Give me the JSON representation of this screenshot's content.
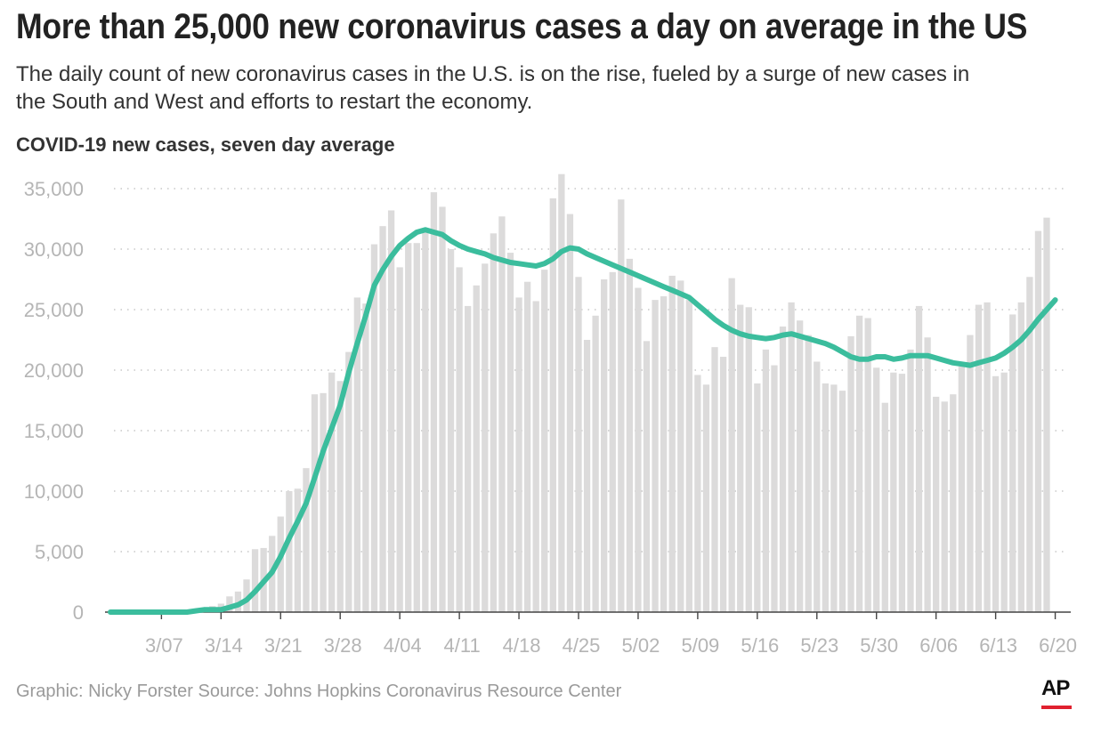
{
  "header": {
    "title": "More than 25,000 new coronavirus cases a day on average in the US",
    "subtitle": "The daily count of new coronavirus cases in the U.S. is on the rise, fueled by a surge of new cases in the South and West and efforts to restart the economy."
  },
  "footer": {
    "credit": "Graphic: Nicky Forster  Source: Johns Hopkins Coronavirus Resource Center",
    "logo_text": "AP"
  },
  "colors": {
    "bar": "#dcdbdb",
    "line": "#3bbd9d",
    "axis_text": "#b5b5b5",
    "grid": "#bdbdbd",
    "logo_red": "#e0212f"
  },
  "chart_data": {
    "type": "bar",
    "title": "COVID-19 new cases, seven day average",
    "x_start": "3/01",
    "x_end": "6/20",
    "xticks": [
      "3/07",
      "3/14",
      "3/21",
      "3/28",
      "4/04",
      "4/11",
      "4/18",
      "4/25",
      "5/02",
      "5/09",
      "5/16",
      "5/23",
      "5/30",
      "6/06",
      "6/13",
      "6/20"
    ],
    "yticks": [
      0,
      5000,
      10000,
      15000,
      20000,
      25000,
      30000,
      35000
    ],
    "ytick_labels": [
      "0",
      "5,000",
      "10,000",
      "15,000",
      "20,000",
      "25,000",
      "30,000",
      "35,000"
    ],
    "ylim": [
      0,
      36500
    ],
    "grid": "horizontal dotted",
    "series": [
      {
        "type": "bar",
        "values": [
          0,
          0,
          0,
          0,
          0,
          0,
          0,
          0,
          100,
          100,
          200,
          300,
          500,
          700,
          1300,
          1700,
          2700,
          5200,
          5300,
          6300,
          7900,
          10000,
          10200,
          11900,
          18000,
          18100,
          19800,
          19100,
          21500,
          26000,
          25500,
          30400,
          31900,
          33200,
          28500,
          30500,
          30500,
          31700,
          34700,
          33500,
          30000,
          28500,
          25300,
          27000,
          28800,
          31300,
          32700,
          29700,
          26000,
          27300,
          25700,
          28300,
          34200,
          36200,
          32900,
          27700,
          22500,
          24500,
          27500,
          28100,
          34100,
          29200,
          26800,
          22400,
          25800,
          26100,
          27800,
          27400,
          25800,
          19600,
          18800,
          21900,
          21100,
          27600,
          25400,
          25200,
          18900,
          21700,
          20400,
          23600,
          25600,
          24100,
          22900,
          20700,
          18900,
          18800,
          18300,
          22800,
          24500,
          24300,
          20200,
          17300,
          19800,
          19700,
          21700,
          25300,
          22700,
          17800,
          17400,
          18000,
          20300,
          22900,
          25400,
          25600,
          19500,
          19800,
          24600,
          25600,
          27700,
          31500,
          32600
        ]
      },
      {
        "type": "line",
        "values": [
          0,
          0,
          0,
          0,
          0,
          0,
          0,
          0,
          0,
          0,
          100,
          200,
          200,
          200,
          400,
          600,
          1000,
          1700,
          2500,
          3300,
          4600,
          6100,
          7500,
          9000,
          11100,
          13300,
          15200,
          17100,
          19800,
          22200,
          24500,
          27000,
          28300,
          29400,
          30300,
          30900,
          31400,
          31600,
          31400,
          31200,
          30700,
          30300,
          30000,
          29800,
          29600,
          29300,
          29100,
          28900,
          28800,
          28700,
          28600,
          28800,
          29200,
          29800,
          30100,
          30000,
          29600,
          29300,
          29000,
          28700,
          28400,
          28100,
          27800,
          27500,
          27200,
          26900,
          26600,
          26300,
          26000,
          25400,
          24800,
          24200,
          23700,
          23300,
          23000,
          22800,
          22700,
          22600,
          22700,
          22900,
          23000,
          22800,
          22600,
          22400,
          22200,
          21900,
          21500,
          21100,
          20900,
          20900,
          21100,
          21100,
          20900,
          21000,
          21200,
          21200,
          21200,
          21000,
          20800,
          20600,
          20500,
          20400,
          20600,
          20800,
          21000,
          21400,
          21900,
          22500,
          23300,
          24200,
          25000,
          25800
        ]
      }
    ]
  }
}
